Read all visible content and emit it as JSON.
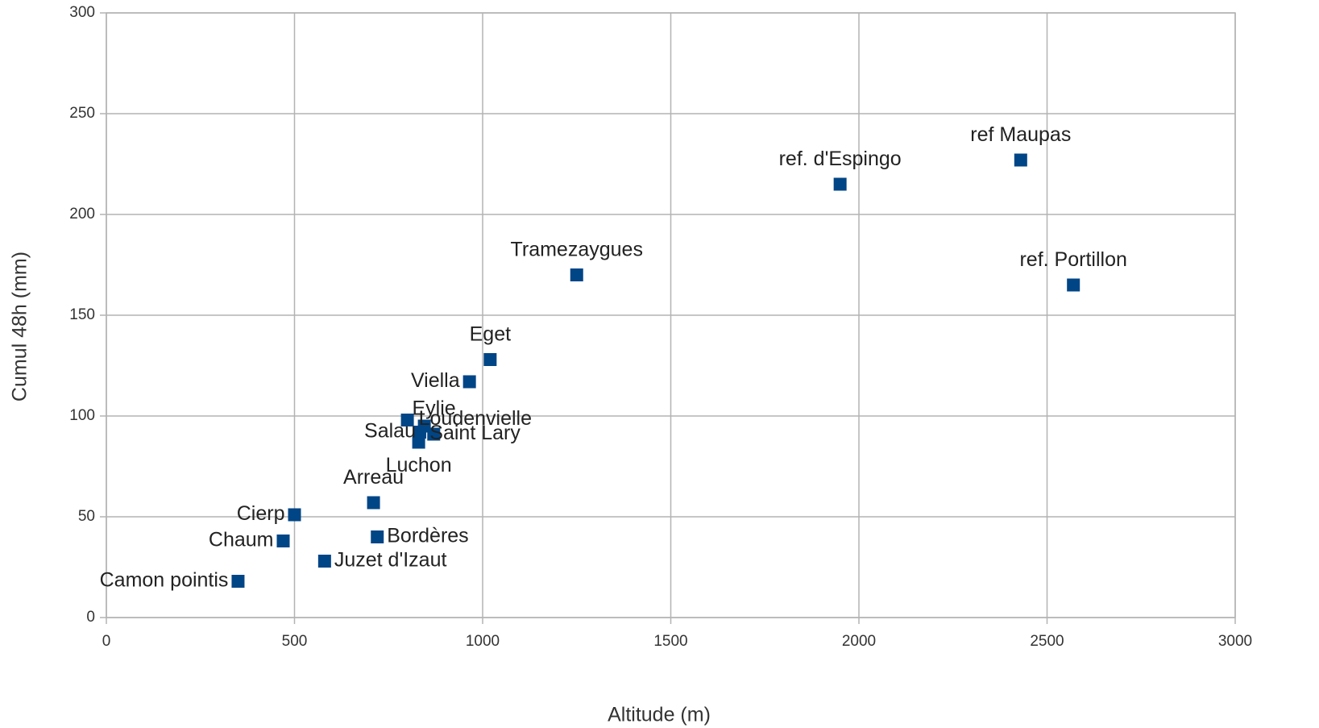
{
  "chart_data": {
    "type": "scatter",
    "x_label": "Altitude (m)",
    "y_label": "Cumul 48h (mm)",
    "series": [
      {
        "color": "#004586",
        "labels": [
          "Camon pointis",
          "Chaum",
          "Cierp",
          "Juzet d'Izaut",
          "Bordères",
          "Arreau",
          "Luchon",
          "Salau",
          "Saint Lary",
          "Eylie",
          "Loudenvielle",
          "Viella",
          "Eget",
          "Tramezaygues",
          "ref. d'Espingo",
          "ref Maupas",
          "ref. Portillon"
        ],
        "x": [
          350,
          470,
          500,
          580,
          720,
          710,
          830,
          833,
          870,
          800,
          845,
          965,
          1020,
          1250,
          1950,
          2430,
          2570
        ],
        "values": [
          18,
          38,
          51,
          28,
          40,
          57,
          87,
          92,
          91,
          98,
          95,
          117,
          128,
          170,
          215,
          227,
          165
        ]
      }
    ],
    "xlim": [
      0,
      3000
    ],
    "xticks": [
      0,
      500,
      1000,
      1500,
      2000,
      2500,
      3000
    ],
    "ylim": [
      0,
      300
    ],
    "yticks": [
      0,
      50,
      100,
      150,
      200,
      250,
      300
    ],
    "grid": true
  }
}
